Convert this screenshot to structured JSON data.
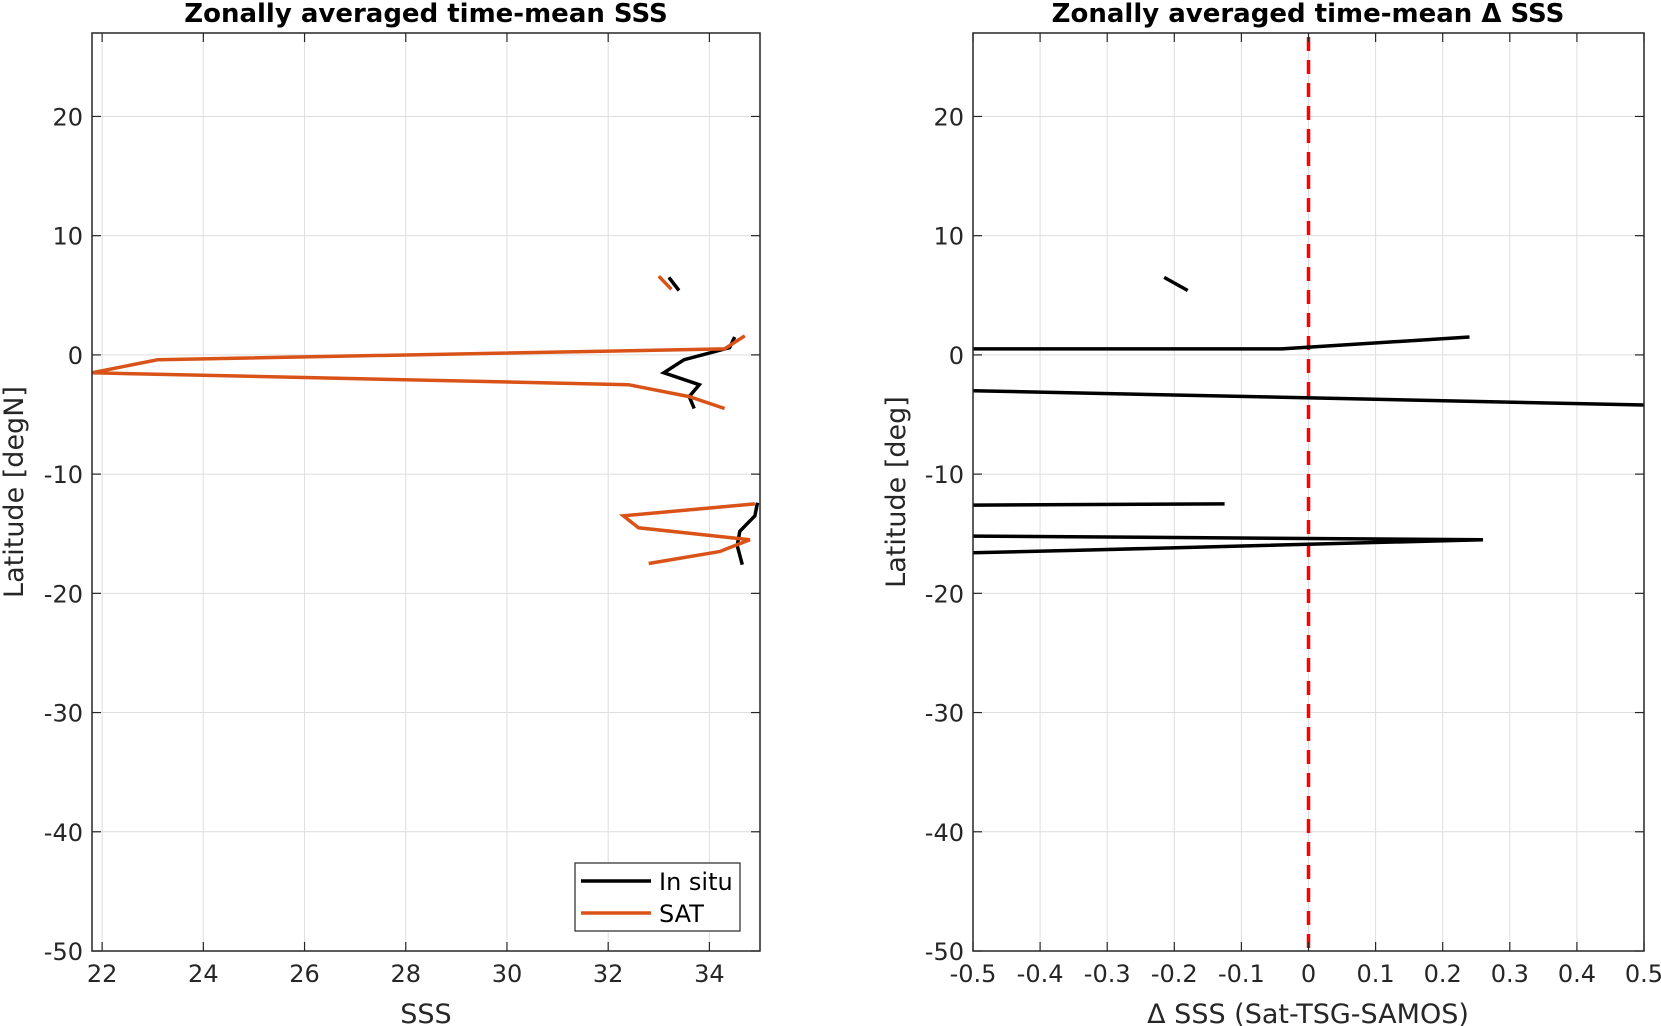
{
  "chart_data": [
    {
      "type": "line",
      "title": "Zonally averaged time-mean SSS",
      "xlabel": "SSS",
      "ylabel": "Latitude [degN]",
      "xlim": [
        21.8,
        35
      ],
      "ylim": [
        -50,
        27
      ],
      "xticks": [
        22,
        24,
        26,
        28,
        30,
        32,
        34
      ],
      "yticks": [
        -50,
        -40,
        -30,
        -20,
        -10,
        0,
        10,
        20
      ],
      "grid": true,
      "legend_position": "bottom-right",
      "series": [
        {
          "name": "In situ",
          "color": "#000000",
          "segments": [
            [
              [
                33.2,
                6.5
              ],
              [
                33.4,
                5.4
              ]
            ],
            [
              [
                34.5,
                1.5
              ],
              [
                34.4,
                0.6
              ],
              [
                33.5,
                -0.4
              ],
              [
                33.1,
                -1.5
              ],
              [
                33.8,
                -2.5
              ],
              [
                33.6,
                -3.5
              ],
              [
                33.7,
                -4.5
              ]
            ],
            [
              [
                34.95,
                -12.4
              ],
              [
                34.9,
                -13.5
              ],
              [
                34.6,
                -14.8
              ],
              [
                34.55,
                -16
              ],
              [
                34.65,
                -17.6
              ]
            ]
          ]
        },
        {
          "name": "SAT",
          "color": "#D95319",
          "segments": [
            [
              [
                33.0,
                6.6
              ],
              [
                33.25,
                5.5
              ]
            ],
            [
              [
                34.7,
                1.6
              ],
              [
                34.3,
                0.5
              ],
              [
                23.1,
                -0.4
              ],
              [
                21.8,
                -1.5
              ],
              [
                32.4,
                -2.5
              ],
              [
                33.6,
                -3.5
              ],
              [
                34.3,
                -4.5
              ]
            ],
            [
              [
                34.9,
                -12.5
              ],
              [
                32.3,
                -13.5
              ],
              [
                32.6,
                -14.5
              ],
              [
                34.8,
                -15.5
              ],
              [
                34.2,
                -16.5
              ],
              [
                32.8,
                -17.5
              ]
            ]
          ]
        }
      ]
    },
    {
      "type": "line",
      "title": "Zonally averaged time-mean Δ SSS",
      "xlabel": "Δ SSS (Sat-TSG-SAMOS)",
      "ylabel": "Latitude [deg]",
      "xlim": [
        -0.5,
        0.5
      ],
      "ylim": [
        -50,
        27
      ],
      "xticks": [
        -0.5,
        -0.4,
        -0.3,
        -0.2,
        -0.1,
        0,
        0.1,
        0.2,
        0.3,
        0.4,
        0.5
      ],
      "yticks": [
        -50,
        -40,
        -30,
        -20,
        -10,
        0,
        10,
        20
      ],
      "grid": true,
      "reference_line": {
        "x": 0,
        "color": "#FF0000",
        "style": "dashed"
      },
      "series": [
        {
          "color": "#000000",
          "segments": [
            [
              [
                -0.215,
                6.5
              ],
              [
                -0.18,
                5.4
              ]
            ],
            [
              [
                0.24,
                1.5
              ],
              [
                -0.04,
                0.5
              ],
              [
                -0.5,
                0.5
              ]
            ],
            [
              [
                -0.5,
                -3.0
              ],
              [
                0.5,
                -4.2
              ]
            ],
            [
              [
                -0.5,
                -12.6
              ],
              [
                -0.125,
                -12.5
              ]
            ],
            [
              [
                -0.5,
                -15.2
              ],
              [
                0.26,
                -15.5
              ],
              [
                -0.35,
                -16.4
              ],
              [
                -0.5,
                -16.6
              ]
            ]
          ]
        }
      ]
    }
  ]
}
